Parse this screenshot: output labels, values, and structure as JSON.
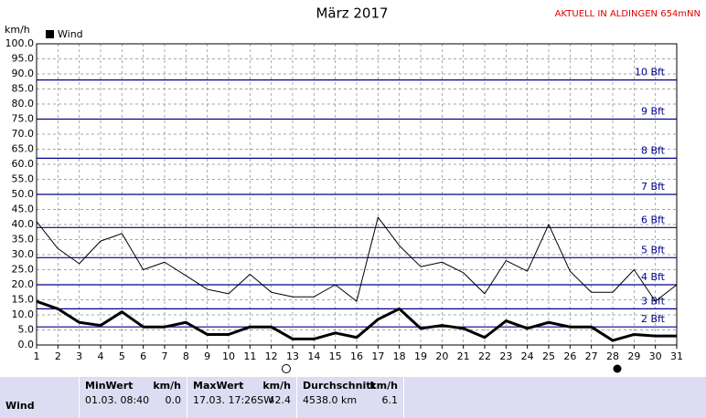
{
  "header": {
    "title": "März 2017",
    "location": "AKTUELL IN ALDINGEN 654mNN"
  },
  "chart_data": {
    "type": "line",
    "y_label": "km/h",
    "x": [
      1,
      2,
      3,
      4,
      5,
      6,
      7,
      8,
      9,
      10,
      11,
      12,
      13,
      14,
      15,
      16,
      17,
      18,
      19,
      20,
      21,
      22,
      23,
      24,
      25,
      26,
      27,
      28,
      29,
      30,
      31
    ],
    "xlim": [
      1,
      31
    ],
    "xticks": [
      1,
      2,
      3,
      4,
      5,
      6,
      7,
      8,
      9,
      10,
      11,
      12,
      13,
      14,
      15,
      16,
      17,
      18,
      19,
      20,
      21,
      22,
      23,
      24,
      25,
      26,
      27,
      28,
      29,
      30,
      31
    ],
    "ylim": [
      0,
      100
    ],
    "yticks": [
      {
        "value": 0,
        "label": "0.0"
      },
      {
        "value": 5,
        "label": "5.0"
      },
      {
        "value": 10,
        "label": "10.0"
      },
      {
        "value": 15,
        "label": "15.0"
      },
      {
        "value": 20,
        "label": "20.0"
      },
      {
        "value": 25,
        "label": "25.0"
      },
      {
        "value": 30,
        "label": "30.0"
      },
      {
        "value": 35,
        "label": "35.0"
      },
      {
        "value": 40,
        "label": "40.0"
      },
      {
        "value": 45,
        "label": "45.0"
      },
      {
        "value": 50,
        "label": "50.0"
      },
      {
        "value": 55,
        "label": "55.0"
      },
      {
        "value": 60,
        "label": "60.0"
      },
      {
        "value": 65,
        "label": "65.0"
      },
      {
        "value": 70,
        "label": "70.0"
      },
      {
        "value": 75,
        "label": "75.0"
      },
      {
        "value": 80,
        "label": "80.0"
      },
      {
        "value": 85,
        "label": "85.0"
      },
      {
        "value": 90,
        "label": "90.0"
      },
      {
        "value": 95,
        "label": "95.0"
      },
      {
        "value": 100,
        "label": "100.0"
      }
    ],
    "grid": true,
    "legend": "top-left",
    "series": [
      {
        "name": "Wind",
        "color": "#000000",
        "line_width": 3,
        "values": [
          14.5,
          12,
          7.5,
          6.5,
          11,
          6,
          6,
          7.5,
          3.5,
          3.5,
          6,
          6,
          2,
          2,
          4,
          2.5,
          8.5,
          12,
          5.5,
          6.5,
          5.5,
          2.5,
          8,
          5.5,
          7.5,
          6,
          6,
          1.5,
          3.5,
          3,
          3
        ]
      },
      {
        "color": "#000000",
        "line_width": 1,
        "values": [
          41,
          32,
          27,
          34.5,
          37,
          25,
          27.5,
          23,
          18.5,
          17,
          23.5,
          17.5,
          16,
          16,
          20,
          14.5,
          42.4,
          33,
          26,
          27.5,
          24,
          17,
          28,
          24.5,
          40,
          24.5,
          17.5,
          17.5,
          25,
          14.5,
          20
        ]
      }
    ],
    "reference_color": "#00008b",
    "reference_lines": [
      {
        "value": 6,
        "label": "2 Bft"
      },
      {
        "value": 12,
        "label": "3 Bft"
      },
      {
        "value": 20,
        "label": "4 Bft"
      },
      {
        "value": 29,
        "label": "5 Bft"
      },
      {
        "value": 39,
        "label": "6 Bft"
      },
      {
        "value": 50,
        "label": "7 Bft"
      },
      {
        "value": 62,
        "label": "8 Bft"
      },
      {
        "value": 75,
        "label": "9 Bft"
      },
      {
        "value": 88,
        "label": "10 Bft"
      }
    ]
  },
  "stats": {
    "row_label": "Wind",
    "columns": [
      {
        "header": "MinWert",
        "unit": "km/h",
        "when": "01.03.  08:40",
        "value": "0.0"
      },
      {
        "header": "MaxWert",
        "unit": "km/h",
        "when": "17.03.  17:26SW",
        "value": "42.4"
      },
      {
        "header": "Durchschnitt",
        "unit": "km/h",
        "when": "4538.0 km",
        "value": "6.1"
      }
    ]
  }
}
